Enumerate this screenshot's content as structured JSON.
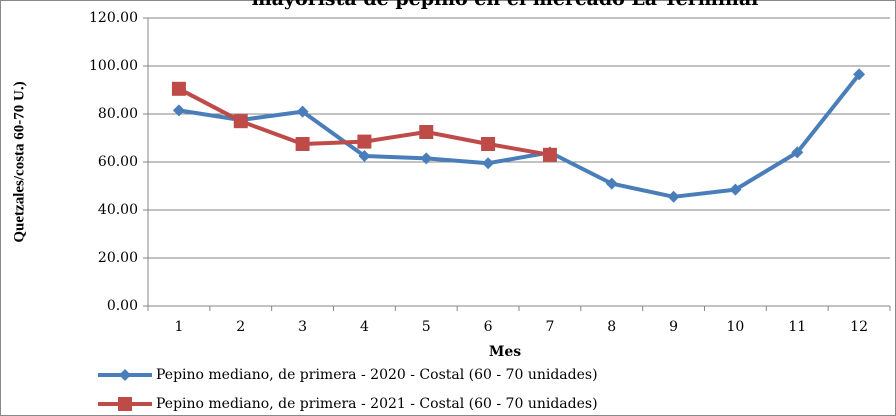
{
  "chart_data": {
    "type": "line",
    "title": "mayorista de pepino en el mercado La Terminal",
    "x_label": "Mes",
    "y_label": "Quetzales/costa 60-70 U.)",
    "categories": [
      "1",
      "2",
      "3",
      "4",
      "5",
      "6",
      "7",
      "8",
      "9",
      "10",
      "11",
      "12"
    ],
    "series": [
      {
        "name": "Pepino mediano, de primera - 2020 - Costal (60 - 70 unidades)",
        "color": "#4a7ebb",
        "marker": "diamond",
        "values": [
          81.5,
          77.5,
          81,
          62.5,
          61.5,
          59.5,
          64,
          51,
          45.5,
          48.5,
          64,
          96.5
        ]
      },
      {
        "name": "Pepino mediano, de primera - 2021 - Costal (60 - 70 unidades)",
        "color": "#be4b48",
        "marker": "square",
        "values": [
          90.5,
          77,
          67.5,
          68.5,
          72.5,
          67.5,
          63,
          null,
          null,
          null,
          null,
          null
        ]
      }
    ],
    "ylim": [
      0,
      120
    ],
    "yticks": [
      {
        "value": 0,
        "label": "0.00"
      },
      {
        "value": 20,
        "label": "20.00"
      },
      {
        "value": 40,
        "label": "40.00"
      },
      {
        "value": 60,
        "label": "60.00"
      },
      {
        "value": 80,
        "label": "80.00"
      },
      {
        "value": 100,
        "label": "100.00"
      },
      {
        "value": 120,
        "label": "120.00"
      }
    ],
    "grid": true,
    "legend": "bottom"
  }
}
